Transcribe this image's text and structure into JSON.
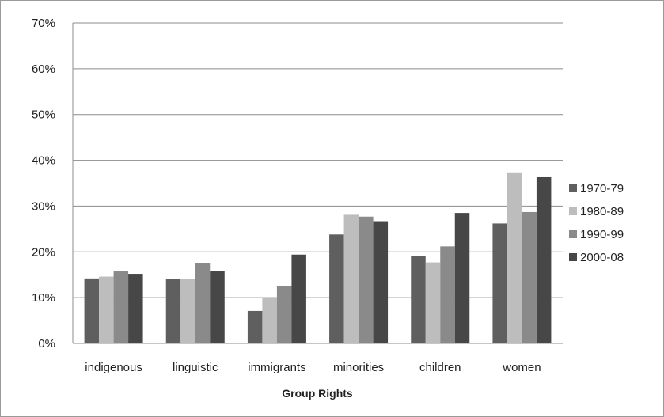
{
  "chart_data": {
    "type": "bar",
    "title": "",
    "xlabel": "Group Rights",
    "ylabel": "",
    "ylim": [
      0,
      70
    ],
    "yticks": [
      "0%",
      "10%",
      "20%",
      "30%",
      "40%",
      "50%",
      "60%",
      "70%"
    ],
    "grid": true,
    "legend_position": "right",
    "categories": [
      "indigenous",
      "linguistic",
      "immigrants",
      "minorities",
      "children",
      "women"
    ],
    "series": [
      {
        "name": "1970-79",
        "color": "#5f5f5f",
        "values": [
          14.2,
          14.0,
          7.1,
          23.8,
          19.1,
          26.2
        ]
      },
      {
        "name": "1980-89",
        "color": "#bdbdbd",
        "values": [
          14.6,
          14.0,
          10.0,
          28.1,
          17.7,
          37.2
        ]
      },
      {
        "name": "1990-99",
        "color": "#8a8a8a",
        "values": [
          15.9,
          17.5,
          12.5,
          27.7,
          21.2,
          28.7
        ]
      },
      {
        "name": "2000-08",
        "color": "#474747",
        "values": [
          15.2,
          15.8,
          19.4,
          26.7,
          28.5,
          36.3
        ]
      }
    ]
  }
}
